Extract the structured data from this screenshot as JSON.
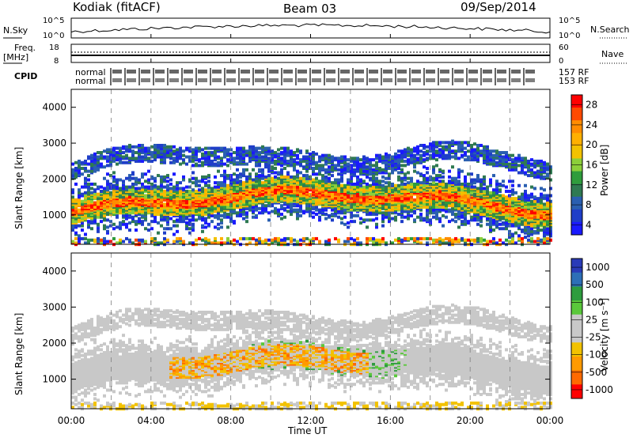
{
  "header": {
    "station": "Kodiak (fitACF)",
    "beam": "Beam 03",
    "date": "09/Sep/2014"
  },
  "top_panels": {
    "nsky_label": "N.Sky",
    "nsky_ticks": [
      "10^5",
      "10^0"
    ],
    "nsearch_label": "N.Search",
    "freq_label_1": "Freq.",
    "freq_label_2": "[MHz]",
    "freq_ticks": [
      "18",
      "8"
    ],
    "nave_label": "Nave",
    "nave_ticks": [
      "60",
      "0"
    ],
    "cpid_label": "CPID",
    "cpid_line1": "normal",
    "cpid_line2": "normal",
    "cpid_right1": "157 RF",
    "cpid_right2": "153 RF"
  },
  "chart_data": [
    {
      "type": "heatmap",
      "name": "power",
      "ylabel": "Slant Range [km]",
      "yticks": [
        "4000",
        "3000",
        "2000",
        "1000"
      ],
      "ylim": [
        180,
        4500
      ],
      "colorbar_label": "Power [dB]",
      "colorbar_ticks": [
        "28",
        "24",
        "20",
        "16",
        "12",
        "8",
        "4"
      ],
      "colorbar_colors": [
        "#ff0000",
        "#ff4a00",
        "#ff8c00",
        "#ffb000",
        "#f2c200",
        "#8ccf3a",
        "#2f9c3c",
        "#2f7a52",
        "#2a5fb0",
        "#1f3ec8",
        "#1a1aff"
      ]
    },
    {
      "type": "heatmap",
      "name": "velocity",
      "ylabel": "Slant Range [km]",
      "yticks": [
        "4000",
        "3000",
        "2000",
        "1000"
      ],
      "ylim": [
        180,
        4500
      ],
      "colorbar_label": "Velocity [m s⁻¹]",
      "colorbar_ticks": [
        "1000",
        "500",
        "100",
        "25",
        "-25",
        "-100",
        "-500",
        "-1000"
      ],
      "colorbar_colors": [
        "#2a3bb8",
        "#2e6fb7",
        "#2e9c3e",
        "#5ac83b",
        "#c8c8c8",
        "#c8c8c8",
        "#f2c200",
        "#ff9a00",
        "#ff6a00",
        "#ff0000"
      ]
    }
  ],
  "xaxis": {
    "ticks": [
      "00:00",
      "04:00",
      "08:00",
      "12:00",
      "16:00",
      "20:00",
      "00:00"
    ],
    "label": "Time UT"
  },
  "colors": {
    "gray_scatter": "#c8c8c8",
    "grid_dash": "#808080"
  }
}
